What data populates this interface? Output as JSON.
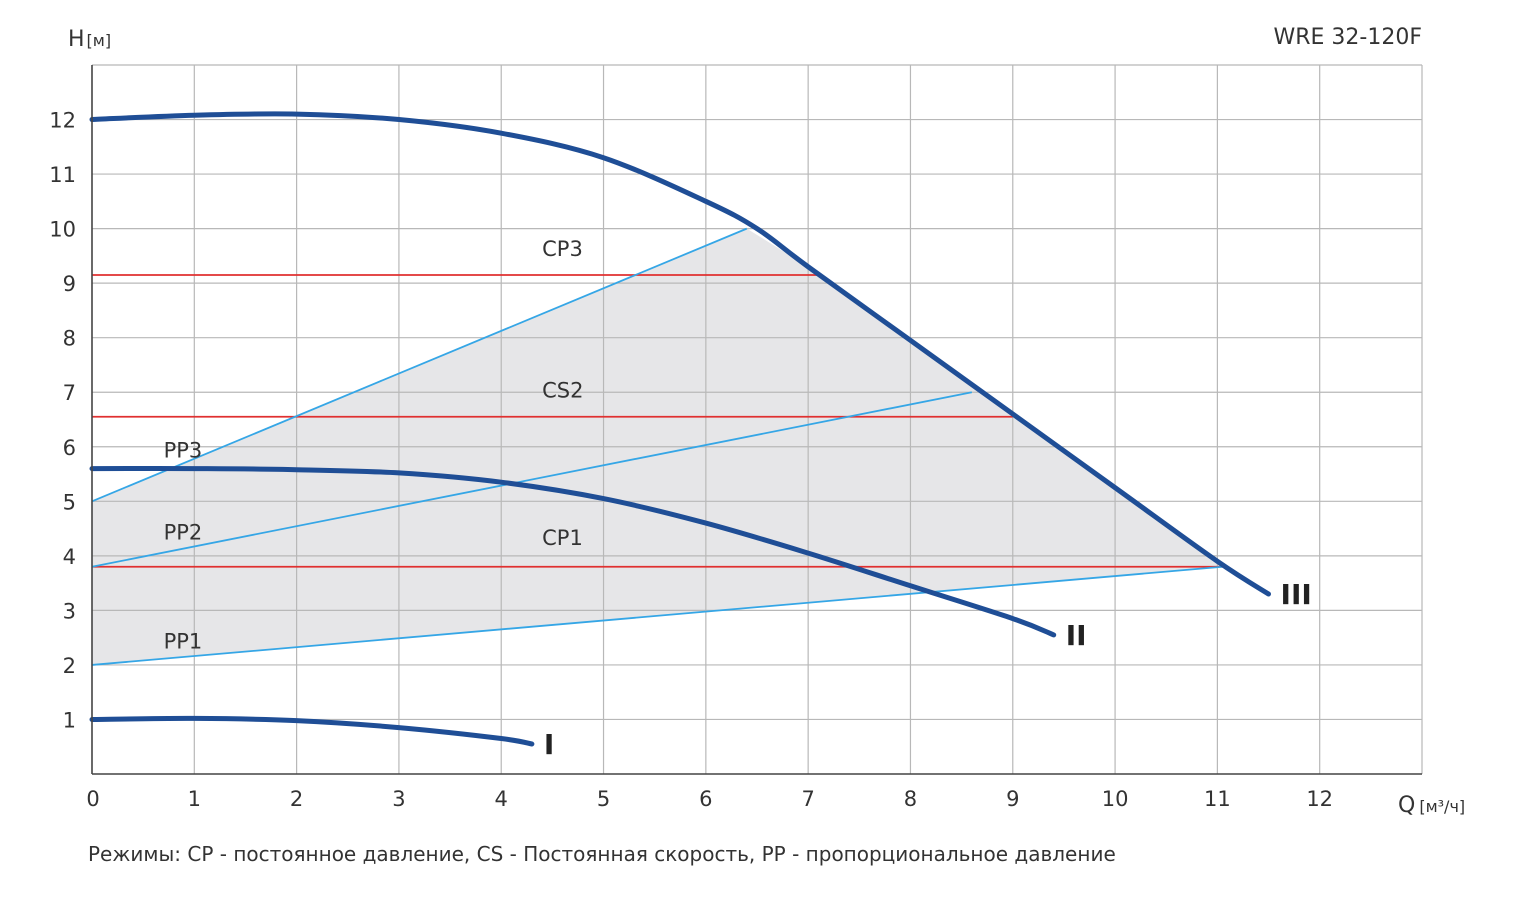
{
  "legend_note": "Режимы: CP - постоянное давление, CS - Постоянная скорость, PP - пропорциональное давление",
  "chart_data": {
    "type": "line",
    "title": "WRE 32-120F",
    "y_axis_label": "Н",
    "y_axis_unit": "[м]",
    "x_axis_label": "Q",
    "x_axis_unit": "[м³/ч]",
    "origin_label": "0",
    "xlim": [
      0,
      13
    ],
    "ylim": [
      0,
      13
    ],
    "x_ticks": [
      "1",
      "2",
      "3",
      "4",
      "5",
      "6",
      "7",
      "8",
      "9",
      "10",
      "11",
      "12"
    ],
    "y_ticks": [
      "1",
      "2",
      "3",
      "4",
      "5",
      "6",
      "7",
      "8",
      "9",
      "10",
      "11",
      "12"
    ],
    "grid": true,
    "colors": {
      "speed_curve": "#1f4e96",
      "cp_line": "#e03030",
      "pp_line": "#35a6e6",
      "region_fill": "#e6e6e8",
      "grid": "#b8b8b8"
    },
    "speed_curves": [
      {
        "label": "I",
        "points": [
          [
            0,
            1.0
          ],
          [
            1,
            1.02
          ],
          [
            2,
            0.98
          ],
          [
            3,
            0.85
          ],
          [
            4,
            0.65
          ],
          [
            4.3,
            0.55
          ]
        ]
      },
      {
        "label": "II",
        "points": [
          [
            0,
            5.6
          ],
          [
            1,
            5.6
          ],
          [
            2,
            5.58
          ],
          [
            3,
            5.52
          ],
          [
            4,
            5.35
          ],
          [
            5,
            5.05
          ],
          [
            6,
            4.6
          ],
          [
            7,
            4.05
          ],
          [
            8,
            3.45
          ],
          [
            9,
            2.85
          ],
          [
            9.4,
            2.55
          ]
        ]
      },
      {
        "label": "III",
        "points": [
          [
            0,
            12.0
          ],
          [
            1,
            12.08
          ],
          [
            2,
            12.1
          ],
          [
            3,
            12.0
          ],
          [
            4,
            11.75
          ],
          [
            5,
            11.3
          ],
          [
            6,
            10.5
          ],
          [
            6.5,
            10.0
          ],
          [
            7,
            9.3
          ],
          [
            8,
            7.95
          ],
          [
            9,
            6.6
          ],
          [
            10,
            5.25
          ],
          [
            11,
            3.9
          ],
          [
            11.5,
            3.3
          ]
        ]
      }
    ],
    "cp_lines": [
      {
        "label": "CP3",
        "y": 9.15,
        "x": [
          0,
          7.1
        ],
        "label_pos": [
          4.4,
          9.5
        ]
      },
      {
        "label": "CS2",
        "y": 6.55,
        "x": [
          0,
          9.0
        ],
        "label_pos": [
          4.4,
          6.9
        ]
      },
      {
        "label": "CP1",
        "y": 3.8,
        "x": [
          0,
          11.05
        ],
        "label_pos": [
          4.4,
          4.2
        ]
      }
    ],
    "pp_lines": [
      {
        "label": "PP3",
        "points": [
          [
            0,
            5.0
          ],
          [
            6.4,
            10.0
          ]
        ],
        "label_pos": [
          0.7,
          5.8
        ]
      },
      {
        "label": "PP2",
        "points": [
          [
            0,
            3.8
          ],
          [
            8.6,
            7.0
          ]
        ],
        "label_pos": [
          0.7,
          4.3
        ]
      },
      {
        "label": "PP1",
        "points": [
          [
            0,
            2.0
          ],
          [
            11.05,
            3.8
          ]
        ],
        "label_pos": [
          0.7,
          2.3
        ]
      }
    ],
    "region": [
      [
        0,
        2.0
      ],
      [
        0,
        5.0
      ],
      [
        6.4,
        10.0
      ],
      [
        7,
        9.3
      ],
      [
        8,
        7.95
      ],
      [
        9,
        6.6
      ],
      [
        10,
        5.25
      ],
      [
        11.05,
        3.8
      ]
    ]
  }
}
